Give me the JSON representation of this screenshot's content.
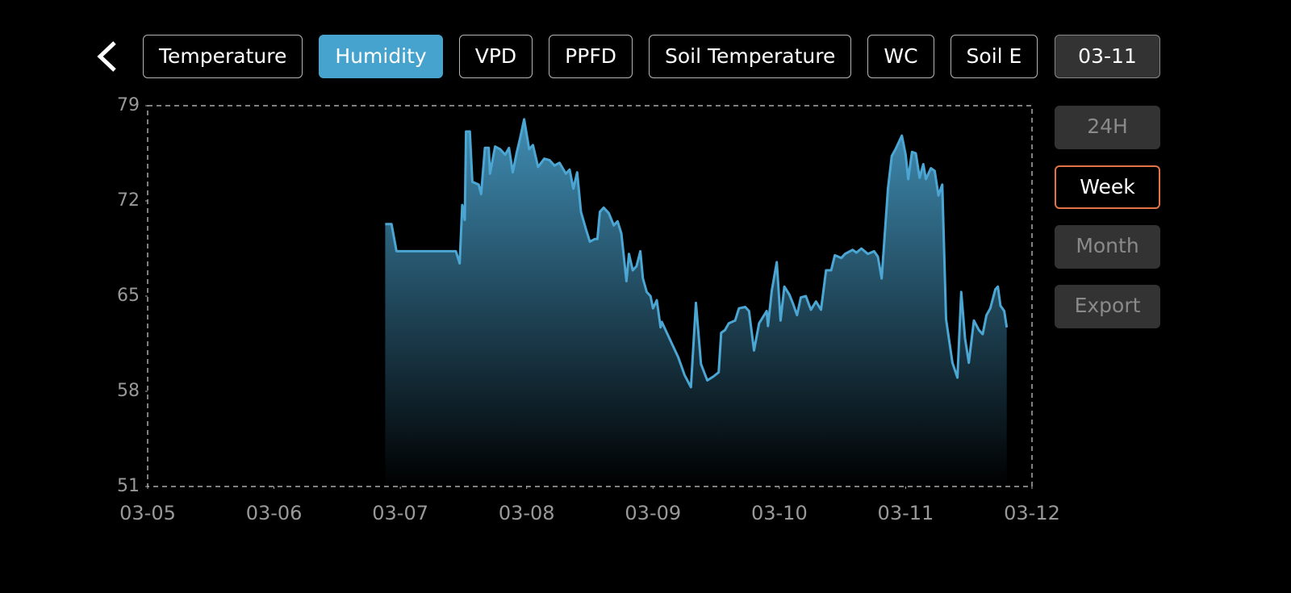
{
  "tabs": [
    "Temperature",
    "Humidity",
    "VPD",
    "PPFD",
    "Soil Temperature",
    "WC",
    "Soil E"
  ],
  "date": "03-11",
  "ranges": [
    "24H",
    "Week",
    "Month"
  ],
  "export": "Export",
  "chart_data": {
    "type": "area",
    "xlim": [
      0,
      7
    ],
    "xticks": [
      {
        "value": 0,
        "label": "03-05"
      },
      {
        "value": 1,
        "label": "03-06"
      },
      {
        "value": 2,
        "label": "03-07"
      },
      {
        "value": 3,
        "label": "03-08"
      },
      {
        "value": 4,
        "label": "03-09"
      },
      {
        "value": 5,
        "label": "03-10"
      },
      {
        "value": 6,
        "label": "03-11"
      },
      {
        "value": 7,
        "label": "03-12"
      }
    ],
    "ylim": [
      51,
      79
    ],
    "yticks": [
      51,
      58,
      65,
      72,
      79
    ],
    "color": "#4ba6d3",
    "x": [
      1.88,
      1.93,
      1.97,
      2.44,
      2.47,
      2.49,
      2.51,
      2.52,
      2.55,
      2.57,
      2.62,
      2.64,
      2.67,
      2.7,
      2.71,
      2.75,
      2.79,
      2.83,
      2.86,
      2.89,
      2.92,
      2.95,
      2.98,
      3.02,
      3.05,
      3.09,
      3.14,
      3.18,
      3.22,
      3.26,
      3.31,
      3.34,
      3.37,
      3.4,
      3.43,
      3.47,
      3.5,
      3.54,
      3.56,
      3.58,
      3.61,
      3.65,
      3.69,
      3.72,
      3.75,
      3.79,
      3.81,
      3.84,
      3.87,
      3.9,
      3.92,
      3.95,
      3.98,
      4.0,
      4.03,
      4.06,
      4.07,
      4.13,
      4.2,
      4.25,
      4.3,
      4.34,
      4.38,
      4.43,
      4.48,
      4.52,
      4.54,
      4.57,
      4.6,
      4.65,
      4.68,
      4.73,
      4.76,
      4.8,
      4.84,
      4.9,
      4.91,
      4.94,
      4.98,
      5.01,
      5.04,
      5.08,
      5.11,
      5.14,
      5.17,
      5.21,
      5.25,
      5.29,
      5.33,
      5.37,
      5.41,
      5.44,
      5.49,
      5.52,
      5.58,
      5.61,
      5.65,
      5.7,
      5.75,
      5.78,
      5.81,
      5.86,
      5.89,
      5.92,
      5.97,
      6.0,
      6.02,
      6.05,
      6.08,
      6.11,
      6.14,
      6.16,
      6.2,
      6.23,
      6.26,
      6.29,
      6.32,
      6.37,
      6.41,
      6.44,
      6.47,
      6.5,
      6.54,
      6.58,
      6.61,
      6.64,
      6.67,
      6.71,
      6.73,
      6.75,
      6.78,
      6.8
    ],
    "values": [
      70.3,
      70.3,
      68.3,
      68.3,
      67.4,
      71.7,
      70.6,
      77.1,
      77.1,
      73.4,
      73.2,
      72.5,
      75.9,
      75.9,
      74.0,
      76.0,
      75.8,
      75.4,
      75.9,
      74.1,
      75.5,
      76.7,
      78.0,
      75.8,
      76.1,
      74.5,
      75.1,
      75.0,
      74.6,
      74.8,
      74.0,
      74.3,
      72.9,
      74.1,
      71.2,
      69.9,
      69.0,
      69.2,
      69.2,
      71.2,
      71.5,
      71.1,
      70.2,
      70.5,
      69.6,
      66.1,
      68.1,
      66.9,
      67.2,
      68.3,
      66.3,
      65.3,
      65.0,
      64.1,
      64.7,
      62.7,
      63.1,
      61.9,
      60.5,
      59.2,
      58.3,
      64.5,
      60.0,
      58.8,
      59.1,
      59.4,
      62.3,
      62.5,
      63.0,
      63.2,
      64.1,
      64.2,
      63.9,
      61.0,
      63.0,
      63.9,
      62.8,
      65.4,
      67.5,
      63.2,
      65.7,
      65.1,
      64.4,
      63.6,
      64.9,
      65.0,
      64.0,
      64.6,
      64.0,
      66.9,
      66.9,
      68.0,
      67.8,
      68.1,
      68.4,
      68.2,
      68.5,
      68.1,
      68.3,
      67.9,
      66.3,
      72.9,
      75.3,
      75.8,
      76.8,
      75.4,
      73.6,
      75.6,
      75.5,
      73.7,
      74.7,
      73.6,
      74.4,
      74.2,
      72.4,
      73.2,
      63.3,
      60.1,
      59.0,
      65.3,
      61.9,
      60.1,
      63.2,
      62.5,
      62.2,
      63.6,
      64.1,
      65.5,
      65.7,
      64.3,
      63.9,
      62.7
    ]
  }
}
